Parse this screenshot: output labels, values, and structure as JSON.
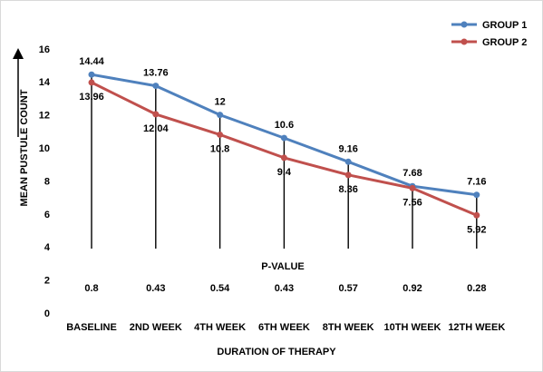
{
  "chart_data": {
    "type": "line",
    "categories": [
      "BASELINE",
      "2ND WEEK",
      "4TH WEEK",
      "6TH WEEK",
      "8TH WEEK",
      "10TH WEEK",
      "12TH WEEK"
    ],
    "series": [
      {
        "name": "GROUP 1",
        "color": "#4f81bd",
        "values": [
          14.44,
          13.76,
          12,
          10.6,
          9.16,
          7.68,
          7.16
        ],
        "labels": [
          "14.44",
          "13.76",
          "12",
          "10.6",
          "9.16",
          "7.68",
          "7.16"
        ]
      },
      {
        "name": "GROUP 2",
        "color": "#c0504d",
        "values": [
          13.96,
          12.04,
          10.8,
          9.4,
          8.36,
          7.56,
          5.92
        ],
        "labels": [
          "13.96",
          "12.04",
          "10.8",
          "9.4",
          "8.36",
          "7.56",
          "5.92"
        ]
      }
    ],
    "p_value": {
      "label": "P-VALUE",
      "values": [
        "0.8",
        "0.43",
        "0.54",
        "0.43",
        "0.57",
        "0.92",
        "0.28"
      ]
    },
    "xlabel": "DURATION OF THERAPY",
    "ylabel": "MEAN PUSTULE COUNT",
    "ylim": [
      0,
      16
    ],
    "yticks": [
      "0",
      "2",
      "4",
      "6",
      "8",
      "10",
      "12",
      "14",
      "16"
    ],
    "legend_position": "top-right",
    "grid": false
  }
}
